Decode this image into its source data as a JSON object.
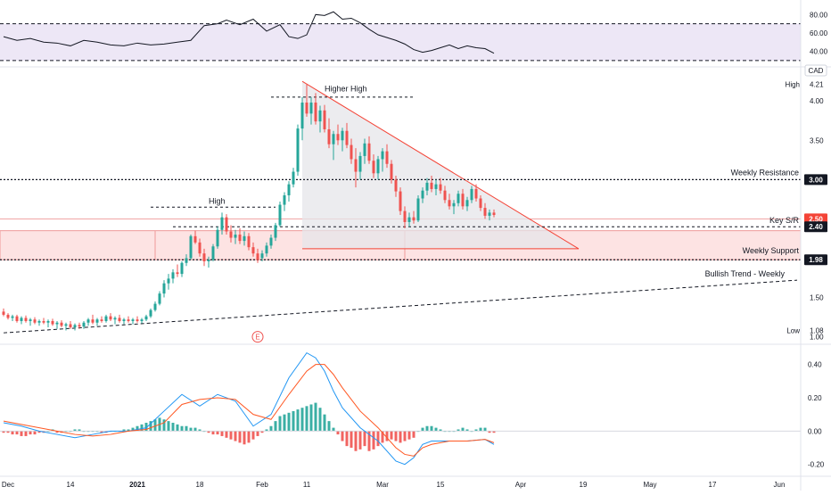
{
  "currency": "CAD",
  "colors": {
    "up": "#26a69a",
    "down": "#ef5350",
    "rsi_band": "#ede7f6",
    "support_zone": "#fde3e3",
    "triangle_fill": "#e6e6ea",
    "triangle_edge": "#f44336",
    "text": "#131722",
    "badge_dark": "#131722",
    "badge_red": "#f44336",
    "macd_line": "#2196f3",
    "signal_line": "#ff5722"
  },
  "chart_data": [
    {
      "type": "line",
      "name": "rsi-panel",
      "ylim": [
        28,
        90
      ],
      "y_ticks": [
        "80.00",
        "60.00",
        "40.00"
      ],
      "band": [
        30,
        70
      ],
      "x": [
        0,
        3,
        6,
        9,
        12,
        15,
        18,
        21,
        24,
        27,
        30,
        33,
        36,
        39,
        42,
        45,
        48,
        50,
        53,
        56,
        59,
        62,
        64,
        66,
        68,
        70,
        72,
        74,
        76,
        78,
        80,
        82,
        84,
        86,
        88,
        90,
        92,
        94,
        96,
        98,
        100,
        102,
        104,
        106,
        108,
        110
      ],
      "values": [
        56,
        52,
        54,
        50,
        49,
        46,
        52,
        50,
        47,
        46,
        49,
        47,
        48,
        50,
        52,
        68,
        70,
        74,
        69,
        75,
        62,
        69,
        56,
        54,
        58,
        80,
        79,
        83,
        75,
        76,
        71,
        64,
        58,
        55,
        52,
        48,
        42,
        39,
        41,
        44,
        47,
        43,
        46,
        44,
        43,
        38
      ]
    },
    {
      "type": "candlestick",
      "name": "price-panel",
      "ylim": [
        0.95,
        4.4
      ],
      "y_ticks": [
        "4.00",
        "3.50",
        "3.00",
        "2.50",
        "2.00",
        "1.50",
        "1.00"
      ],
      "x_ticks": [
        {
          "label": "Dec",
          "x": 1
        },
        {
          "label": "14",
          "x": 15
        },
        {
          "label": "2021",
          "x": 30
        },
        {
          "label": "18",
          "x": 44
        },
        {
          "label": "Feb",
          "x": 58
        },
        {
          "label": "11",
          "x": 68
        },
        {
          "label": "Mar",
          "x": 85
        },
        {
          "label": "15",
          "x": 98
        },
        {
          "label": "Apr",
          "x": 116
        },
        {
          "label": "19",
          "x": 130
        },
        {
          "label": "May",
          "x": 145
        },
        {
          "label": "17",
          "x": 159
        },
        {
          "label": "Jun",
          "x": 174
        }
      ],
      "x_range": [
        0,
        180
      ],
      "price_badges": [
        {
          "label": "High",
          "value": "4.21",
          "style": "plain"
        },
        {
          "value": "3.00",
          "style": "dark"
        },
        {
          "value": "2.50",
          "style": "red"
        },
        {
          "value": "2.40",
          "style": "dark"
        },
        {
          "value": "1.98",
          "style": "dark"
        },
        {
          "label": "Low",
          "value": "1.08",
          "style": "plain"
        }
      ],
      "annotations": [
        {
          "text": "Higher High"
        },
        {
          "text": "High"
        },
        {
          "text": "Weekly Resistance"
        },
        {
          "text": "Key S/R"
        },
        {
          "text": "Weekly Support"
        },
        {
          "text": "Bullish Trend - Weekly"
        }
      ],
      "levels": {
        "weekly_resistance": 3.0,
        "key_sr": 2.4,
        "weekly_support": 1.98,
        "support_zone": [
          1.98,
          2.35
        ],
        "higher_high": 4.05,
        "prior_high": 2.65
      },
      "triangle": {
        "apex": [
          67,
          4.25
        ],
        "base_left": [
          67,
          2.12
        ],
        "base_right": [
          129,
          2.12
        ]
      },
      "trend": {
        "x": [
          0,
          178
        ],
        "y": [
          1.05,
          1.72
        ]
      },
      "earnings_marker": "E",
      "earnings_x": 57,
      "candles": [
        [
          0,
          1.32,
          1.36,
          1.26,
          1.28
        ],
        [
          1,
          1.28,
          1.3,
          1.22,
          1.24
        ],
        [
          2,
          1.24,
          1.28,
          1.2,
          1.26
        ],
        [
          3,
          1.26,
          1.28,
          1.18,
          1.2
        ],
        [
          4,
          1.2,
          1.26,
          1.16,
          1.24
        ],
        [
          5,
          1.24,
          1.27,
          1.18,
          1.2
        ],
        [
          6,
          1.2,
          1.24,
          1.14,
          1.22
        ],
        [
          7,
          1.22,
          1.25,
          1.16,
          1.18
        ],
        [
          8,
          1.18,
          1.22,
          1.14,
          1.2
        ],
        [
          9,
          1.2,
          1.24,
          1.16,
          1.18
        ],
        [
          10,
          1.18,
          1.22,
          1.12,
          1.2
        ],
        [
          11,
          1.2,
          1.23,
          1.14,
          1.16
        ],
        [
          12,
          1.16,
          1.2,
          1.1,
          1.18
        ],
        [
          13,
          1.18,
          1.21,
          1.12,
          1.14
        ],
        [
          14,
          1.14,
          1.18,
          1.08,
          1.16
        ],
        [
          15,
          1.16,
          1.2,
          1.1,
          1.12
        ],
        [
          16,
          1.12,
          1.17,
          1.08,
          1.15
        ],
        [
          17,
          1.15,
          1.18,
          1.1,
          1.13
        ],
        [
          18,
          1.13,
          1.2,
          1.1,
          1.18
        ],
        [
          19,
          1.18,
          1.24,
          1.14,
          1.22
        ],
        [
          20,
          1.22,
          1.28,
          1.16,
          1.18
        ],
        [
          21,
          1.18,
          1.24,
          1.14,
          1.22
        ],
        [
          22,
          1.22,
          1.26,
          1.18,
          1.2
        ],
        [
          23,
          1.2,
          1.28,
          1.18,
          1.26
        ],
        [
          24,
          1.26,
          1.3,
          1.2,
          1.22
        ],
        [
          25,
          1.22,
          1.26,
          1.16,
          1.24
        ],
        [
          26,
          1.24,
          1.28,
          1.18,
          1.2
        ],
        [
          27,
          1.2,
          1.24,
          1.16,
          1.22
        ],
        [
          28,
          1.22,
          1.26,
          1.18,
          1.2
        ],
        [
          29,
          1.2,
          1.24,
          1.16,
          1.22
        ],
        [
          30,
          1.22,
          1.26,
          1.18,
          1.2
        ],
        [
          31,
          1.2,
          1.24,
          1.17,
          1.22
        ],
        [
          32,
          1.22,
          1.28,
          1.2,
          1.26
        ],
        [
          33,
          1.26,
          1.36,
          1.24,
          1.34
        ],
        [
          34,
          1.34,
          1.45,
          1.32,
          1.42
        ],
        [
          35,
          1.42,
          1.58,
          1.4,
          1.55
        ],
        [
          36,
          1.55,
          1.72,
          1.5,
          1.68
        ],
        [
          37,
          1.68,
          1.8,
          1.6,
          1.74
        ],
        [
          38,
          1.74,
          1.86,
          1.68,
          1.82
        ],
        [
          39,
          1.82,
          1.92,
          1.76,
          1.8
        ],
        [
          40,
          1.8,
          1.96,
          1.76,
          1.94
        ],
        [
          41,
          1.94,
          2.05,
          1.9,
          2.0
        ],
        [
          42,
          2.0,
          2.3,
          1.98,
          2.28
        ],
        [
          43,
          2.28,
          2.35,
          2.18,
          2.2
        ],
        [
          44,
          2.2,
          2.25,
          2.02,
          2.06
        ],
        [
          45,
          2.06,
          2.12,
          1.9,
          1.96
        ],
        [
          46,
          1.96,
          2.02,
          1.88,
          1.98
        ],
        [
          47,
          1.98,
          2.18,
          1.96,
          2.15
        ],
        [
          48,
          2.15,
          2.4,
          2.12,
          2.36
        ],
        [
          49,
          2.36,
          2.58,
          2.3,
          2.52
        ],
        [
          50,
          2.52,
          2.56,
          2.3,
          2.34
        ],
        [
          51,
          2.34,
          2.42,
          2.2,
          2.26
        ],
        [
          52,
          2.26,
          2.36,
          2.18,
          2.3
        ],
        [
          53,
          2.3,
          2.38,
          2.18,
          2.22
        ],
        [
          54,
          2.22,
          2.34,
          2.16,
          2.28
        ],
        [
          55,
          2.28,
          2.32,
          2.1,
          2.14
        ],
        [
          56,
          2.14,
          2.2,
          2.02,
          2.06
        ],
        [
          57,
          2.06,
          2.12,
          1.94,
          1.98
        ],
        [
          58,
          2.0,
          2.1,
          1.96,
          2.06
        ],
        [
          59,
          2.06,
          2.2,
          2.02,
          2.16
        ],
        [
          60,
          2.16,
          2.3,
          2.12,
          2.26
        ],
        [
          61,
          2.26,
          2.45,
          2.22,
          2.42
        ],
        [
          62,
          2.42,
          2.72,
          2.4,
          2.68
        ],
        [
          63,
          2.68,
          2.84,
          2.6,
          2.8
        ],
        [
          64,
          2.8,
          2.98,
          2.72,
          2.94
        ],
        [
          65,
          2.94,
          3.15,
          2.9,
          3.1
        ],
        [
          66,
          3.1,
          3.7,
          3.05,
          3.65
        ],
        [
          67,
          3.65,
          4.05,
          3.5,
          3.98
        ],
        [
          68,
          3.98,
          4.21,
          3.8,
          3.84
        ],
        [
          69,
          3.84,
          4.05,
          3.7,
          3.98
        ],
        [
          70,
          3.98,
          4.1,
          3.7,
          3.74
        ],
        [
          71,
          3.74,
          3.94,
          3.6,
          3.88
        ],
        [
          72,
          3.88,
          3.95,
          3.6,
          3.64
        ],
        [
          73,
          3.64,
          3.78,
          3.4,
          3.45
        ],
        [
          74,
          3.45,
          3.62,
          3.25,
          3.58
        ],
        [
          75,
          3.58,
          3.7,
          3.44,
          3.5
        ],
        [
          76,
          3.5,
          3.66,
          3.36,
          3.62
        ],
        [
          77,
          3.62,
          3.72,
          3.4,
          3.44
        ],
        [
          78,
          3.44,
          3.52,
          3.2,
          3.26
        ],
        [
          79,
          3.26,
          3.4,
          2.9,
          3.1
        ],
        [
          80,
          3.1,
          3.35,
          3.0,
          3.3
        ],
        [
          81,
          3.3,
          3.52,
          3.2,
          3.46
        ],
        [
          82,
          3.46,
          3.55,
          3.2,
          3.24
        ],
        [
          83,
          3.24,
          3.32,
          3.02,
          3.08
        ],
        [
          84,
          3.08,
          3.3,
          3.0,
          3.26
        ],
        [
          85,
          3.26,
          3.4,
          3.1,
          3.36
        ],
        [
          86,
          3.36,
          3.45,
          3.15,
          3.2
        ],
        [
          87,
          3.2,
          3.25,
          2.95,
          3.0
        ],
        [
          88,
          3.0,
          3.05,
          2.78,
          2.85
        ],
        [
          89,
          2.85,
          2.9,
          2.55,
          2.6
        ],
        [
          90,
          2.6,
          2.66,
          2.38,
          2.46
        ],
        [
          91,
          2.46,
          2.58,
          2.4,
          2.52
        ],
        [
          92,
          2.52,
          2.6,
          2.44,
          2.48
        ],
        [
          93,
          2.48,
          2.8,
          2.46,
          2.76
        ],
        [
          94,
          2.76,
          2.9,
          2.7,
          2.86
        ],
        [
          95,
          2.86,
          3.02,
          2.8,
          2.96
        ],
        [
          96,
          2.96,
          3.05,
          2.84,
          2.88
        ],
        [
          97,
          2.88,
          3.0,
          2.8,
          2.94
        ],
        [
          98,
          2.94,
          3.02,
          2.82,
          2.86
        ],
        [
          99,
          2.86,
          2.92,
          2.7,
          2.74
        ],
        [
          100,
          2.74,
          2.82,
          2.62,
          2.66
        ],
        [
          101,
          2.66,
          2.74,
          2.56,
          2.7
        ],
        [
          102,
          2.7,
          2.86,
          2.66,
          2.82
        ],
        [
          103,
          2.82,
          2.88,
          2.62,
          2.66
        ],
        [
          104,
          2.66,
          2.78,
          2.6,
          2.74
        ],
        [
          105,
          2.74,
          2.92,
          2.7,
          2.88
        ],
        [
          106,
          2.88,
          2.94,
          2.72,
          2.76
        ],
        [
          107,
          2.76,
          2.8,
          2.6,
          2.64
        ],
        [
          108,
          2.64,
          2.7,
          2.5,
          2.54
        ],
        [
          109,
          2.54,
          2.62,
          2.48,
          2.58
        ],
        [
          110,
          2.58,
          2.62,
          2.52,
          2.55
        ]
      ]
    },
    {
      "type": "line",
      "name": "macd-panel",
      "ylim": [
        -0.25,
        0.5
      ],
      "y_ticks": [
        "0.40",
        "0.20",
        "0.00",
        "-0.20"
      ],
      "x": [
        0,
        4,
        8,
        12,
        16,
        20,
        24,
        28,
        32,
        36,
        40,
        44,
        48,
        52,
        56,
        60,
        64,
        68,
        70,
        72,
        74,
        76,
        80,
        84,
        88,
        90,
        92,
        94,
        96,
        100,
        104,
        108,
        110
      ],
      "macd": [
        0.05,
        0.03,
        0.0,
        -0.02,
        -0.04,
        -0.02,
        0.0,
        0.0,
        0.02,
        0.12,
        0.22,
        0.15,
        0.22,
        0.18,
        0.03,
        0.1,
        0.32,
        0.47,
        0.44,
        0.36,
        0.24,
        0.14,
        0.02,
        -0.06,
        -0.18,
        -0.2,
        -0.16,
        -0.08,
        -0.06,
        -0.06,
        -0.06,
        -0.05,
        -0.08
      ],
      "signal": [
        0.06,
        0.04,
        0.02,
        0.0,
        -0.02,
        -0.03,
        -0.02,
        0.0,
        0.01,
        0.05,
        0.16,
        0.19,
        0.2,
        0.19,
        0.1,
        0.07,
        0.22,
        0.36,
        0.4,
        0.4,
        0.34,
        0.26,
        0.12,
        0.02,
        -0.1,
        -0.14,
        -0.15,
        -0.1,
        -0.08,
        -0.06,
        -0.06,
        -0.05,
        -0.07
      ],
      "histogram": [
        -0.01,
        -0.01,
        -0.02,
        -0.02,
        -0.03,
        -0.03,
        -0.02,
        -0.02,
        -0.01,
        -0.01,
        0.0,
        0.01,
        -0.01,
        -0.01,
        0.0,
        0.0,
        0.01,
        0.01,
        0.0,
        0.0,
        0.0,
        0.0,
        -0.01,
        -0.01,
        0.0,
        0.0,
        0.0,
        0.01,
        0.01,
        0.02,
        0.03,
        0.04,
        0.05,
        0.06,
        0.07,
        0.08,
        0.07,
        0.06,
        0.05,
        0.04,
        0.03,
        0.03,
        0.02,
        0.02,
        0.01,
        0.0,
        -0.01,
        -0.02,
        -0.02,
        -0.03,
        -0.04,
        -0.05,
        -0.06,
        -0.07,
        -0.08,
        -0.07,
        -0.05,
        -0.03,
        -0.01,
        0.01,
        0.03,
        0.06,
        0.09,
        0.1,
        0.11,
        0.12,
        0.13,
        0.14,
        0.15,
        0.16,
        0.17,
        0.14,
        0.1,
        0.06,
        0.02,
        -0.02,
        -0.06,
        -0.09,
        -0.1,
        -0.12,
        -0.11,
        -0.09,
        -0.12,
        -0.11,
        -0.09,
        -0.07,
        -0.06,
        -0.05,
        -0.06,
        -0.07,
        -0.06,
        -0.05,
        -0.04,
        0.0,
        0.02,
        0.03,
        0.03,
        0.02,
        0.01,
        0.0,
        0.0,
        0.0,
        0.01,
        0.02,
        0.01,
        0.0,
        0.01,
        0.02,
        0.02,
        -0.01,
        -0.01
      ]
    }
  ]
}
